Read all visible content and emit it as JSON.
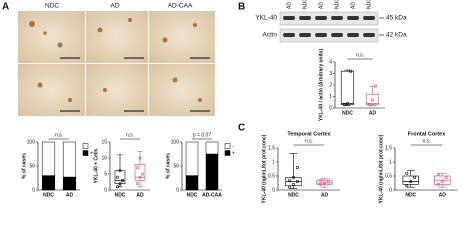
{
  "panel_a": {
    "label": "A",
    "columns": [
      "NDC",
      "AD",
      "AD-CAA"
    ]
  },
  "panel_b": {
    "label": "B"
  },
  "panel_c": {
    "label": "C"
  },
  "blot": {
    "lanes": [
      "AD",
      "NDC",
      "AD",
      "NDC",
      "AD",
      "NDC"
    ],
    "rows": [
      {
        "name": "YKL-40",
        "size": "45 kDa"
      },
      {
        "name": "Actin",
        "size": "42 kDa"
      }
    ]
  },
  "chart_data": [
    {
      "type": "stacked",
      "y_label": "% of cases",
      "annotation": "n.s.",
      "categories": [
        "NDC",
        "AD"
      ],
      "ylim": [
        0,
        100
      ],
      "yticks": [
        0,
        50,
        100
      ],
      "series": [
        {
          "name": "+",
          "color": "#000000",
          "values": [
            30,
            27
          ]
        },
        {
          "name": "-",
          "color": "#ffffff",
          "values": [
            70,
            73
          ]
        }
      ]
    },
    {
      "type": "box",
      "y_label": "YKL-40 + Cells",
      "annotation": "n.s.",
      "categories": [
        "NDC",
        "AD"
      ],
      "ylim": [
        0,
        15
      ],
      "yticks": [
        0,
        5,
        10,
        15
      ],
      "colors": [
        "#000000",
        "#c0507a"
      ],
      "boxes": [
        {
          "min": 1,
          "q1": 2,
          "median": 3,
          "q3": 6,
          "max": 11,
          "points": [
            1,
            2,
            3,
            4,
            6
          ]
        },
        {
          "min": 1,
          "q1": 3,
          "median": 4,
          "q3": 8,
          "max": 12,
          "points": [
            2,
            4,
            5,
            7,
            10
          ]
        }
      ]
    },
    {
      "type": "stacked",
      "y_label": "% of cases",
      "annotation": "p = 0.07",
      "categories": [
        "NDC",
        "AD-CAA"
      ],
      "ylim": [
        0,
        100
      ],
      "yticks": [
        0,
        50,
        100
      ],
      "series": [
        {
          "name": "+",
          "color": "#000000",
          "values": [
            30,
            75
          ]
        },
        {
          "name": "-",
          "color": "#ffffff",
          "values": [
            70,
            25
          ]
        }
      ]
    },
    {
      "type": "box",
      "y_label": "YKL-40 / actin (Arbitrary units)",
      "annotation": "n.s.",
      "categories": [
        "NDC",
        "AD"
      ],
      "ylim": [
        0,
        4
      ],
      "yticks": [
        0,
        1,
        2,
        3,
        4
      ],
      "colors": [
        "#000000",
        "#c0507a"
      ],
      "boxes": [
        {
          "min": 0.2,
          "q1": 0.3,
          "median": 0.4,
          "q3": 3.2,
          "max": 3.3,
          "points": [
            0.3,
            0.4,
            3.2
          ]
        },
        {
          "min": 0.2,
          "q1": 0.3,
          "median": 0.4,
          "q3": 1.2,
          "max": 1.9,
          "points": [
            0.3,
            0.7,
            1.9
          ]
        }
      ]
    },
    {
      "type": "box",
      "title": "Temporal Cortex",
      "y_label": "YKL-40 (ng/mL/tot prot.conc)",
      "annotation": "n.s.",
      "categories": [
        "NDC",
        "AD"
      ],
      "ylim": [
        0,
        1.5
      ],
      "yticks": [
        0,
        0.5,
        1,
        1.5
      ],
      "colors": [
        "#000000",
        "#c0507a"
      ],
      "boxes": [
        {
          "min": 0.05,
          "q1": 0.15,
          "median": 0.3,
          "q3": 0.45,
          "max": 1.3,
          "points": [
            0.1,
            0.2,
            0.3,
            0.35,
            0.45,
            0.8
          ]
        },
        {
          "min": 0.1,
          "q1": 0.2,
          "median": 0.25,
          "q3": 0.35,
          "max": 0.4,
          "points": [
            0.2,
            0.25,
            0.3,
            0.35
          ]
        }
      ]
    },
    {
      "type": "box",
      "title": "Frontal Cortex",
      "y_label": "YKL-40 (ng/mL/tot prot.conc)",
      "annotation": "n.s.",
      "categories": [
        "NDC",
        "AD"
      ],
      "ylim": [
        0,
        1.5
      ],
      "yticks": [
        0,
        0.5,
        1,
        1.5
      ],
      "colors": [
        "#000000",
        "#c0507a"
      ],
      "boxes": [
        {
          "min": 0.1,
          "q1": 0.2,
          "median": 0.3,
          "q3": 0.5,
          "max": 0.7,
          "points": [
            0.15,
            0.3,
            0.45,
            0.6
          ]
        },
        {
          "min": 0.1,
          "q1": 0.2,
          "median": 0.35,
          "q3": 0.5,
          "max": 0.6,
          "points": [
            0.2,
            0.3,
            0.45,
            0.55
          ]
        }
      ]
    }
  ]
}
